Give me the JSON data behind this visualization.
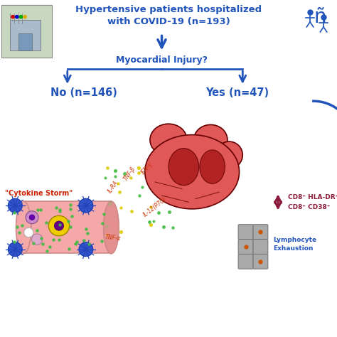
{
  "title_text": "Hypertensive patients hospitalized\nwith COVID-19 (n=193)",
  "title_color": "#2255bb",
  "myocardial_text": "Myocardial Injury?",
  "myocardial_color": "#2255bb",
  "no_text": "No (n=146)",
  "yes_text": "Yes (n=47)",
  "branch_color": "#2255bb",
  "cytokine_label": "\"Cytokine Storm\"",
  "cytokine_color": "#cc2200",
  "cd8_text1": "CD8⁺ HLA-DR⁺",
  "cd8_text2": "CD8⁺ CD38⁺",
  "cd8_color": "#8b1a3a",
  "lympho_text": "Lymphocyte\nExhaustion",
  "lympho_color": "#2255bb",
  "bg_color": "#ffffff",
  "arrow_color": "#2255bb",
  "double_arrow_up_color": "#8b1a3a",
  "double_arrow_down_color": "#8b1a3a",
  "vessel_fill": "#f4a8a8",
  "vessel_edge": "#cc8888",
  "dot_green": "#44bb44",
  "dot_yellow": "#ddcc00",
  "heart_main": "#e05858",
  "heart_dark": "#aa2222",
  "heart_edge": "#660000"
}
